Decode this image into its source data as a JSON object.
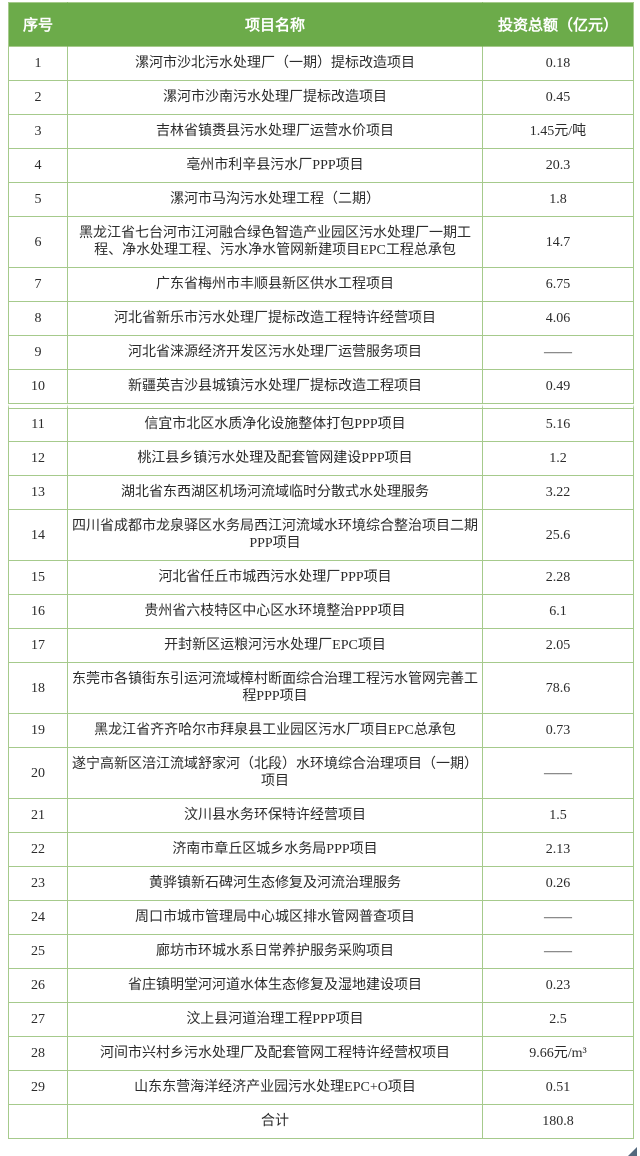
{
  "table": {
    "columns": [
      "序号",
      "项目名称",
      "投资总额（亿元）"
    ],
    "rows": [
      {
        "no": "1",
        "name": "漯河市沙北污水处理厂（一期）提标改造项目",
        "amount": "0.18"
      },
      {
        "no": "2",
        "name": "漯河市沙南污水处理厂提标改造项目",
        "amount": "0.45"
      },
      {
        "no": "3",
        "name": "吉林省镇赉县污水处理厂运营水价项目",
        "amount": "1.45元/吨"
      },
      {
        "no": "4",
        "name": "亳州市利辛县污水厂PPP项目",
        "amount": "20.3"
      },
      {
        "no": "5",
        "name": "漯河市马沟污水处理工程（二期）",
        "amount": "1.8"
      },
      {
        "no": "6",
        "name": "黑龙江省七台河市江河融合绿色智造产业园区污水处理厂一期工程、净水处理工程、污水净水管网新建项目EPC工程总承包",
        "amount": "14.7"
      },
      {
        "no": "7",
        "name": "广东省梅州市丰顺县新区供水工程项目",
        "amount": "6.75"
      },
      {
        "no": "8",
        "name": "河北省新乐市污水处理厂提标改造工程特许经营项目",
        "amount": "4.06"
      },
      {
        "no": "9",
        "name": "河北省涞源经济开发区污水处理厂运营服务项目",
        "amount": "——"
      },
      {
        "no": "10",
        "name": "新疆英吉沙县城镇污水处理厂提标改造工程项目",
        "amount": "0.49"
      },
      {
        "no": "11",
        "name": "信宜市北区水质净化设施整体打包PPP项目",
        "amount": "5.16"
      },
      {
        "no": "12",
        "name": "桃江县乡镇污水处理及配套管网建设PPP项目",
        "amount": "1.2"
      },
      {
        "no": "13",
        "name": "湖北省东西湖区机场河流域临时分散式水处理服务",
        "amount": "3.22"
      },
      {
        "no": "14",
        "name": "四川省成都市龙泉驿区水务局西江河流域水环境综合整治项目二期PPP项目",
        "amount": "25.6"
      },
      {
        "no": "15",
        "name": "河北省任丘市城西污水处理厂PPP项目",
        "amount": "2.28"
      },
      {
        "no": "16",
        "name": "贵州省六枝特区中心区水环境整治PPP项目",
        "amount": "6.1"
      },
      {
        "no": "17",
        "name": "开封新区运粮河污水处理厂EPC项目",
        "amount": "2.05"
      },
      {
        "no": "18",
        "name": "东莞市各镇街东引运河流域樟村断面综合治理工程污水管网完善工程PPP项目",
        "amount": "78.6"
      },
      {
        "no": "19",
        "name": "黑龙江省齐齐哈尔市拜泉县工业园区污水厂项目EPC总承包",
        "amount": "0.73"
      },
      {
        "no": "20",
        "name": "遂宁高新区涪江流域舒家河（北段）水环境综合治理项目（一期）项目",
        "amount": "——"
      },
      {
        "no": "21",
        "name": "汶川县水务环保特许经营项目",
        "amount": "1.5"
      },
      {
        "no": "22",
        "name": "济南市章丘区城乡水务局PPP项目",
        "amount": "2.13"
      },
      {
        "no": "23",
        "name": "黄骅镇新石碑河生态修复及河流治理服务",
        "amount": "0.26"
      },
      {
        "no": "24",
        "name": "周口市城市管理局中心城区排水管网普查项目",
        "amount": "——"
      },
      {
        "no": "25",
        "name": "廊坊市环城水系日常养护服务采购项目",
        "amount": "——"
      },
      {
        "no": "26",
        "name": "省庄镇明堂河河道水体生态修复及湿地建设项目",
        "amount": "0.23"
      },
      {
        "no": "27",
        "name": "汶上县河道治理工程PPP项目",
        "amount": "2.5"
      },
      {
        "no": "28",
        "name": "河间市兴村乡污水处理厂及配套管网工程特许经营权项目",
        "amount": "9.66元/m³"
      },
      {
        "no": "29",
        "name": "山东东营海洋经济产业园污水处理EPC+O项目",
        "amount": "0.51"
      }
    ],
    "total": {
      "label": "合计",
      "value": "180.8"
    }
  },
  "colors": {
    "header_bg": "#6cab4a",
    "header_text": "#ffffff",
    "border": "#a6ca8c",
    "body_text": "#2b2b2b"
  }
}
